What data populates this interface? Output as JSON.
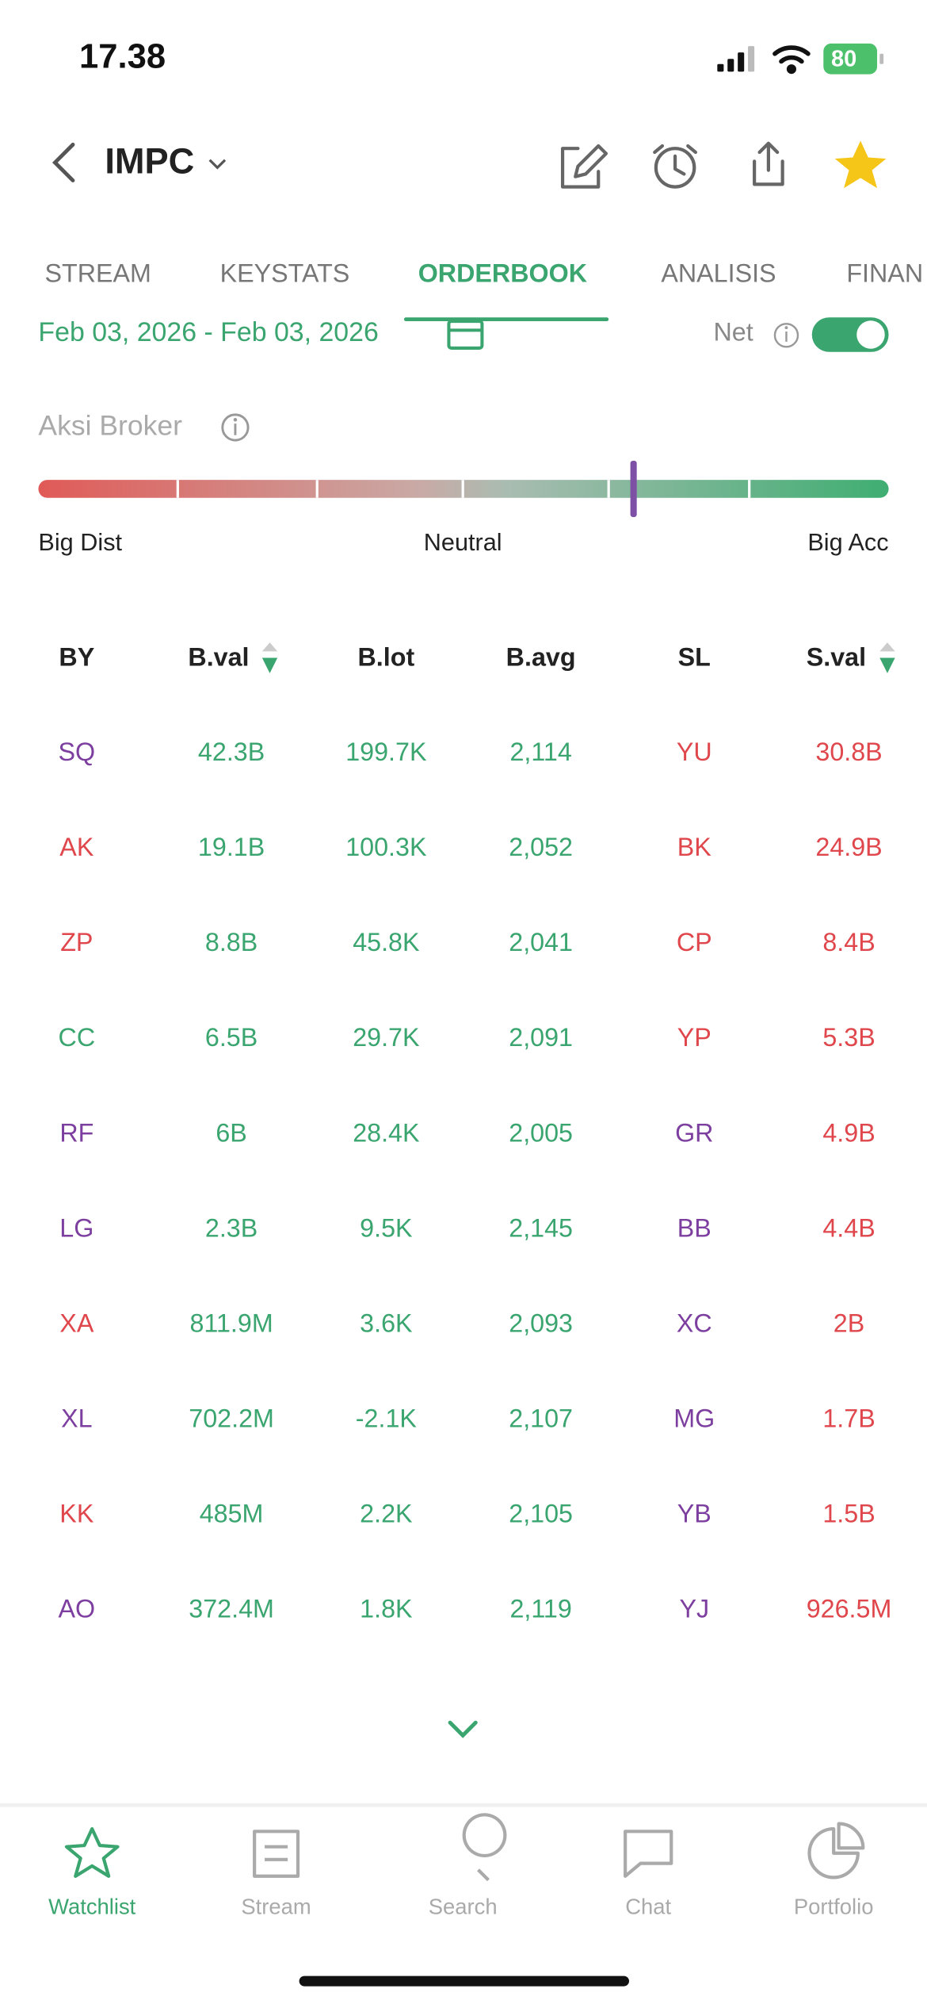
{
  "status_bar": {
    "time": "17.38",
    "battery": "80"
  },
  "header": {
    "ticker": "IMPC"
  },
  "tabs": {
    "items": [
      "STREAM",
      "KEYSTATS",
      "ORDERBOOK",
      "ANALISIS",
      "FINAN"
    ],
    "active": 2
  },
  "filters": {
    "date_range": "Feb 03, 2026 - Feb 03, 2026",
    "net_label": "Net",
    "net_on": true
  },
  "aksi_broker": {
    "title": "Aksi Broker",
    "left": "Big Dist",
    "middle": "Neutral",
    "right": "Big Acc",
    "position": 0.7
  },
  "table": {
    "headers": [
      "BY",
      "B.val",
      "B.lot",
      "B.avg",
      "SL",
      "S.val"
    ],
    "rows": [
      [
        "SQ",
        "42.3B",
        "199.7K",
        "2,114",
        "YU",
        "30.8B"
      ],
      [
        "AK",
        "19.1B",
        "100.3K",
        "2,052",
        "BK",
        "24.9B"
      ],
      [
        "ZP",
        "8.8B",
        "45.8K",
        "2,041",
        "CP",
        "8.4B"
      ],
      [
        "CC",
        "6.5B",
        "29.7K",
        "2,091",
        "YP",
        "5.3B"
      ],
      [
        "RF",
        "6B",
        "28.4K",
        "2,005",
        "GR",
        "4.9B"
      ],
      [
        "LG",
        "2.3B",
        "9.5K",
        "2,145",
        "BB",
        "4.4B"
      ],
      [
        "XA",
        "811.9M",
        "3.6K",
        "2,093",
        "XC",
        "2B"
      ],
      [
        "XL",
        "702.2M",
        "-2.1K",
        "2,107",
        "MG",
        "1.7B"
      ],
      [
        "KK",
        "485M",
        "2.2K",
        "2,105",
        "YB",
        "1.5B"
      ],
      [
        "AO",
        "372.4M",
        "1.8K",
        "2,119",
        "YJ",
        "926.5M"
      ]
    ],
    "by_colors": [
      "#7d3f9f",
      "#e0474c",
      "#e0474c",
      "#3aa56f",
      "#7d3f9f",
      "#7d3f9f",
      "#e0474c",
      "#7d3f9f",
      "#e0474c",
      "#7d3f9f"
    ],
    "sl_colors": [
      "#e0474c",
      "#e0474c",
      "#e0474c",
      "#e0474c",
      "#7d3f9f",
      "#7d3f9f",
      "#7d3f9f",
      "#7d3f9f",
      "#7d3f9f",
      "#7d3f9f"
    ]
  },
  "nav": {
    "items": [
      "Watchlist",
      "Stream",
      "Search",
      "Chat",
      "Portfolio"
    ],
    "active": 0
  }
}
